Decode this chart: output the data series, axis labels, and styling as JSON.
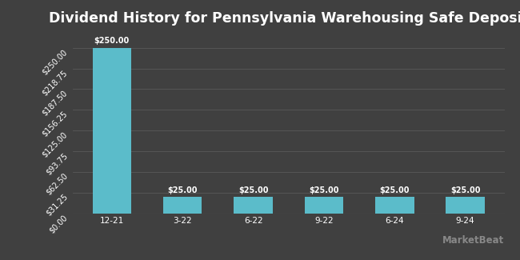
{
  "title": "Dividend History for Pennsylvania Warehousing Safe Deposit",
  "categories": [
    "12-21",
    "3-22",
    "6-22",
    "9-22",
    "6-24",
    "9-24"
  ],
  "values": [
    250.0,
    25.0,
    25.0,
    25.0,
    25.0,
    25.0
  ],
  "bar_color": "#5bbcca",
  "background_color": "#404040",
  "grid_color": "#585858",
  "text_color": "#ffffff",
  "title_fontsize": 12.5,
  "tick_fontsize": 7.0,
  "ylim_max": 275,
  "yticks": [
    0.0,
    31.25,
    62.5,
    93.75,
    125.0,
    156.25,
    187.5,
    218.75,
    250.0
  ],
  "ytick_labels": [
    "$0.00",
    "$31.25",
    "$62.50",
    "$93.75",
    "$125.00",
    "$156.25",
    "$187.50",
    "$218.75",
    "$250.00"
  ],
  "bar_labels": [
    "$250.00",
    "$25.00",
    "$25.00",
    "$25.00",
    "$25.00",
    "$25.00"
  ],
  "watermark": "MarketBeat",
  "watermark_color": "#888888"
}
